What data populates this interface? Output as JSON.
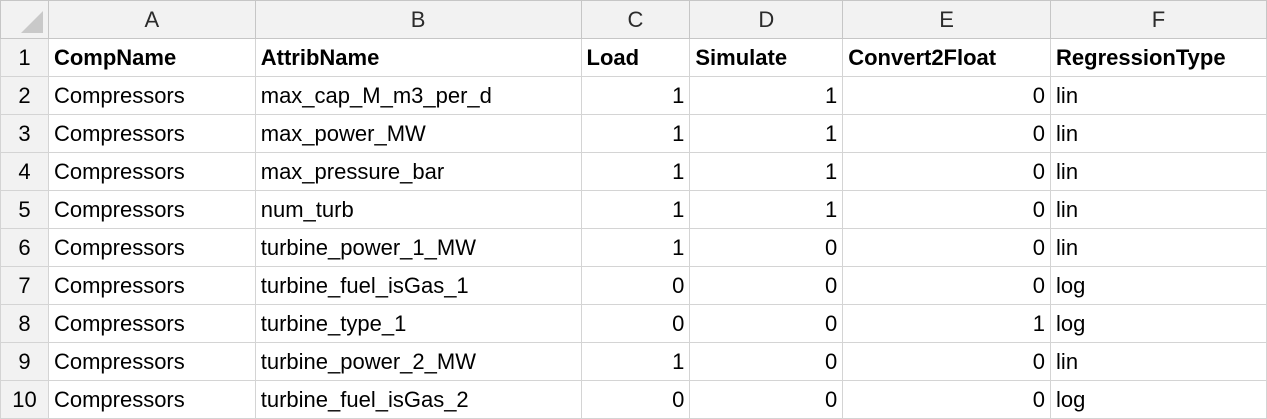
{
  "columns": [
    "A",
    "B",
    "C",
    "D",
    "E",
    "F"
  ],
  "rows": [
    {
      "n": "1",
      "cells": [
        "CompName",
        "AttribName",
        "Load",
        "Simulate",
        "Convert2Float",
        "RegressionType"
      ]
    },
    {
      "n": "2",
      "cells": [
        "Compressors",
        "max_cap_M_m3_per_d",
        "1",
        "1",
        "0",
        "lin"
      ]
    },
    {
      "n": "3",
      "cells": [
        "Compressors",
        "max_power_MW",
        "1",
        "1",
        "0",
        "lin"
      ]
    },
    {
      "n": "4",
      "cells": [
        "Compressors",
        "max_pressure_bar",
        "1",
        "1",
        "0",
        "lin"
      ]
    },
    {
      "n": "5",
      "cells": [
        "Compressors",
        "num_turb",
        "1",
        "1",
        "0",
        "lin"
      ]
    },
    {
      "n": "6",
      "cells": [
        "Compressors",
        "turbine_power_1_MW",
        "1",
        "0",
        "0",
        "lin"
      ]
    },
    {
      "n": "7",
      "cells": [
        "Compressors",
        "turbine_fuel_isGas_1",
        "0",
        "0",
        "0",
        "log"
      ]
    },
    {
      "n": "8",
      "cells": [
        "Compressors",
        "turbine_type_1",
        "0",
        "0",
        "1",
        "log"
      ]
    },
    {
      "n": "9",
      "cells": [
        "Compressors",
        "turbine_power_2_MW",
        "1",
        "0",
        "0",
        "lin"
      ]
    },
    {
      "n": "10",
      "cells": [
        "Compressors",
        "turbine_fuel_isGas_2",
        "0",
        "0",
        "0",
        "log"
      ]
    }
  ]
}
